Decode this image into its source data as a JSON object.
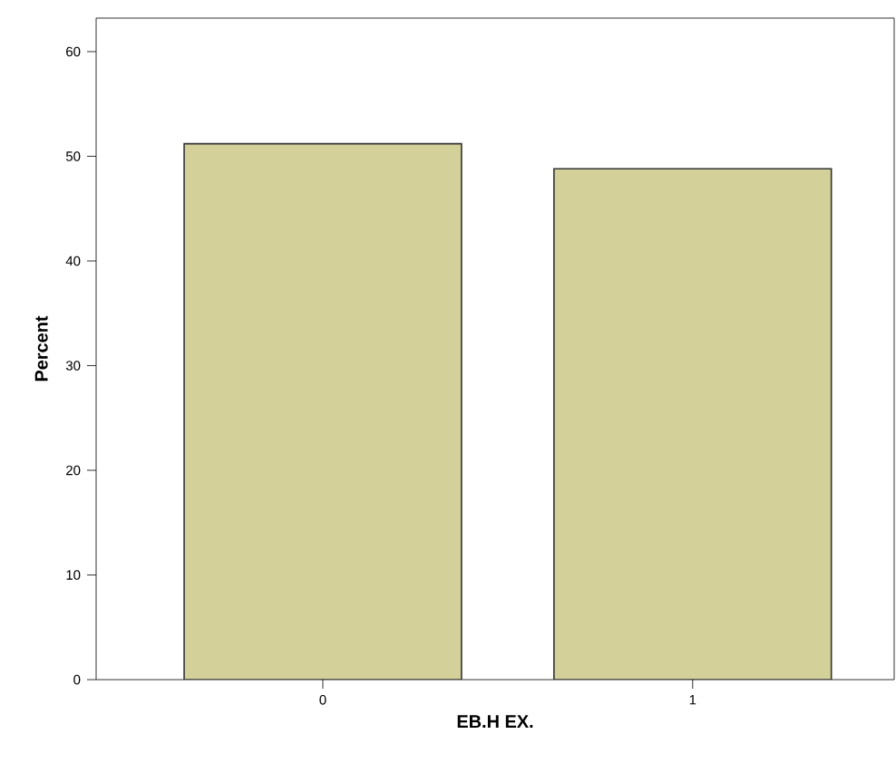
{
  "chart_data": {
    "type": "bar",
    "xlabel": "EB.H EX.",
    "ylabel": "Percent",
    "categories": [
      "0",
      "1"
    ],
    "values": [
      51.2,
      48.8
    ],
    "color": "#d3d09a",
    "ylim": [
      0,
      63.2
    ],
    "yticks": [
      0,
      10,
      20,
      30,
      40,
      50,
      60
    ],
    "grid": false
  }
}
